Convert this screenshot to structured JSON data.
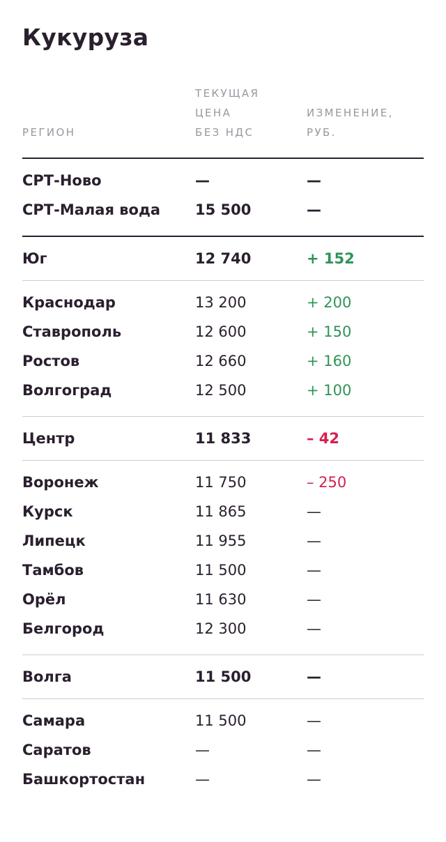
{
  "title": "Кукуруза",
  "headers": {
    "region": "РЕГИОН",
    "price": "ТЕКУЩАЯ\nЦЕНА\nБЕЗ НДС",
    "change": "ИЗМЕНЕНИЕ,\nРУБ."
  },
  "groups": [
    {
      "rows": [
        {
          "region": "СРТ-Ново",
          "price": "—",
          "change": "—",
          "bold": true,
          "trend": "none"
        },
        {
          "region": "СРТ-Малая вода",
          "price": "15 500",
          "change": "—",
          "bold": true,
          "trend": "none"
        }
      ]
    },
    {
      "rows": [
        {
          "region": "Юг",
          "price": "12 740",
          "change": "+ 152",
          "bold": true,
          "trend": "up"
        }
      ]
    },
    {
      "rows": [
        {
          "region": "Краснодар",
          "price": "13 200",
          "change": "+ 200",
          "bold": false,
          "trend": "up"
        },
        {
          "region": "Ставрополь",
          "price": "12 600",
          "change": "+ 150",
          "bold": false,
          "trend": "up"
        },
        {
          "region": "Ростов",
          "price": "12 660",
          "change": "+ 160",
          "bold": false,
          "trend": "up"
        },
        {
          "region": "Волгоград",
          "price": "12 500",
          "change": "+ 100",
          "bold": false,
          "trend": "up"
        }
      ]
    },
    {
      "rows": [
        {
          "region": "Центр",
          "price": "11 833",
          "change": "– 42",
          "bold": true,
          "trend": "down"
        }
      ]
    },
    {
      "rows": [
        {
          "region": "Воронеж",
          "price": "11 750",
          "change": "– 250",
          "bold": false,
          "trend": "down"
        },
        {
          "region": "Курск",
          "price": "11 865",
          "change": "—",
          "bold": false,
          "trend": "none"
        },
        {
          "region": "Липецк",
          "price": "11 955",
          "change": "—",
          "bold": false,
          "trend": "none"
        },
        {
          "region": "Тамбов",
          "price": "11 500",
          "change": "—",
          "bold": false,
          "trend": "none"
        },
        {
          "region": "Орёл",
          "price": "11 630",
          "change": "—",
          "bold": false,
          "trend": "none"
        },
        {
          "region": "Белгород",
          "price": "12 300",
          "change": "—",
          "bold": false,
          "trend": "none"
        }
      ]
    },
    {
      "rows": [
        {
          "region": "Волга",
          "price": "11 500",
          "change": "—",
          "bold": true,
          "trend": "none"
        }
      ]
    },
    {
      "rows": [
        {
          "region": "Самара",
          "price": "11 500",
          "change": "—",
          "bold": false,
          "trend": "none"
        },
        {
          "region": "Саратов",
          "price": "—",
          "change": "—",
          "bold": false,
          "trend": "none"
        },
        {
          "region": "Башкортостан",
          "price": "—",
          "change": "—",
          "bold": false,
          "trend": "none"
        }
      ]
    }
  ],
  "colors": {
    "text": "#2a1f2e",
    "header": "#9a96a0",
    "positive": "#2e9458",
    "negative": "#d42050",
    "divider": "#cfcbd2"
  }
}
